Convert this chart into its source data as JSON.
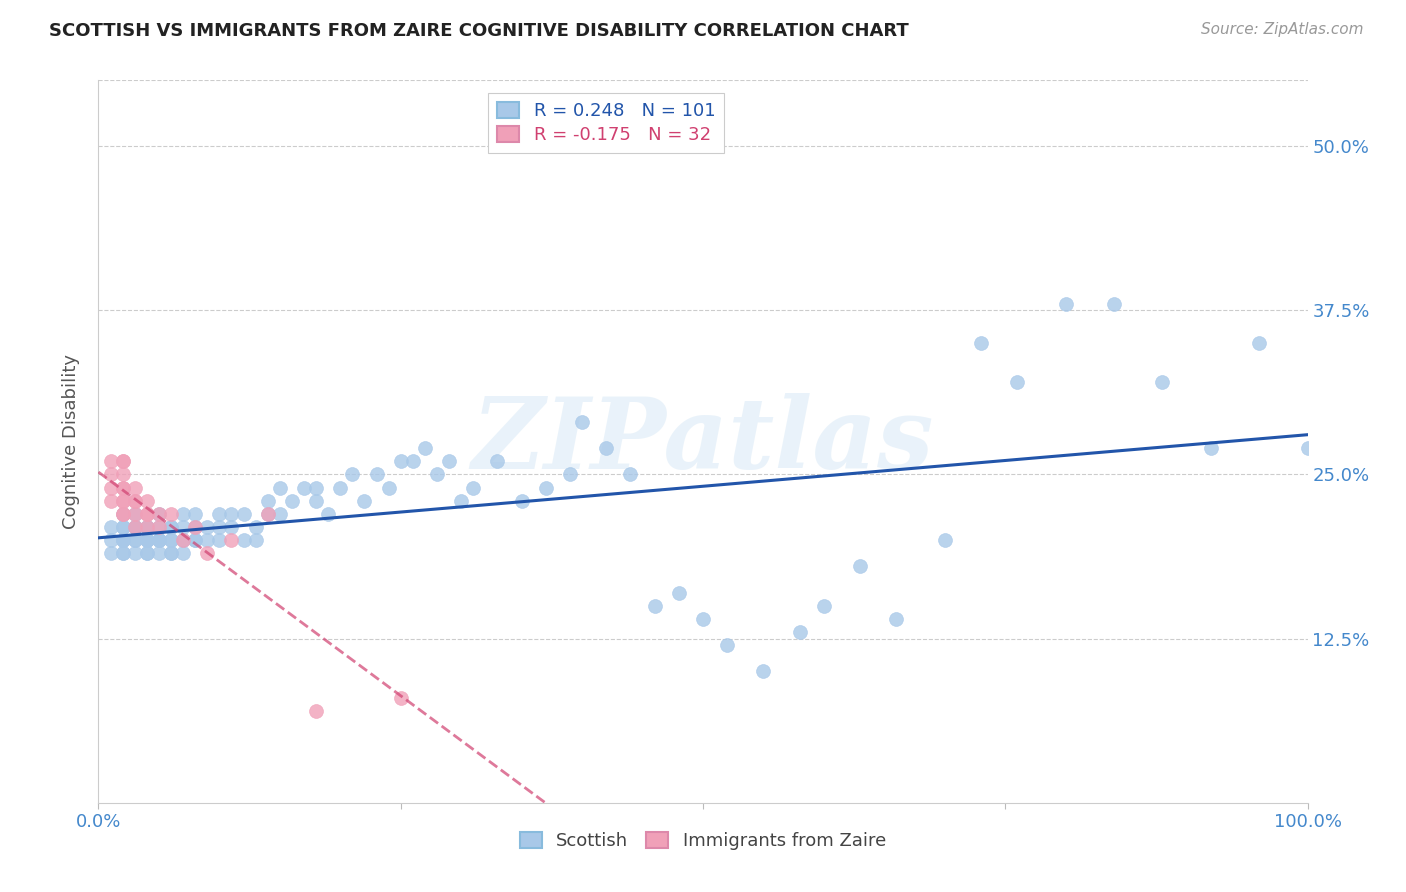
{
  "title": "SCOTTISH VS IMMIGRANTS FROM ZAIRE COGNITIVE DISABILITY CORRELATION CHART",
  "source": "Source: ZipAtlas.com",
  "ylabel": "Cognitive Disability",
  "xlim": [
    0.0,
    1.0
  ],
  "ylim": [
    0.0,
    0.55
  ],
  "scottish_color": "#a8c8e8",
  "zaire_color": "#f0a0b8",
  "scottish_line_color": "#2255aa",
  "zaire_line_color": "#d04070",
  "R_scottish": 0.248,
  "N_scottish": 101,
  "R_zaire": -0.175,
  "N_zaire": 32,
  "legend_labels": [
    "Scottish",
    "Immigrants from Zaire"
  ],
  "watermark": "ZIPatlas",
  "background_color": "#ffffff",
  "grid_color": "#cccccc",
  "tick_color": "#4488cc",
  "scottish_x": [
    0.01,
    0.01,
    0.01,
    0.02,
    0.02,
    0.02,
    0.02,
    0.02,
    0.02,
    0.02,
    0.02,
    0.03,
    0.03,
    0.03,
    0.03,
    0.03,
    0.03,
    0.04,
    0.04,
    0.04,
    0.04,
    0.04,
    0.04,
    0.04,
    0.05,
    0.05,
    0.05,
    0.05,
    0.05,
    0.05,
    0.06,
    0.06,
    0.06,
    0.06,
    0.06,
    0.06,
    0.07,
    0.07,
    0.07,
    0.07,
    0.08,
    0.08,
    0.08,
    0.08,
    0.09,
    0.09,
    0.1,
    0.1,
    0.1,
    0.11,
    0.11,
    0.12,
    0.12,
    0.13,
    0.13,
    0.14,
    0.14,
    0.15,
    0.15,
    0.16,
    0.17,
    0.18,
    0.18,
    0.19,
    0.2,
    0.21,
    0.22,
    0.23,
    0.24,
    0.25,
    0.26,
    0.27,
    0.28,
    0.29,
    0.3,
    0.31,
    0.33,
    0.35,
    0.37,
    0.39,
    0.4,
    0.42,
    0.44,
    0.46,
    0.48,
    0.5,
    0.52,
    0.55,
    0.58,
    0.6,
    0.63,
    0.66,
    0.7,
    0.73,
    0.76,
    0.8,
    0.84,
    0.88,
    0.92,
    0.96,
    1.0
  ],
  "scottish_y": [
    0.2,
    0.21,
    0.19,
    0.2,
    0.21,
    0.19,
    0.2,
    0.21,
    0.22,
    0.19,
    0.2,
    0.2,
    0.21,
    0.19,
    0.22,
    0.2,
    0.21,
    0.19,
    0.2,
    0.21,
    0.2,
    0.19,
    0.21,
    0.2,
    0.2,
    0.21,
    0.19,
    0.2,
    0.22,
    0.2,
    0.21,
    0.19,
    0.2,
    0.21,
    0.2,
    0.19,
    0.2,
    0.22,
    0.21,
    0.19,
    0.21,
    0.2,
    0.22,
    0.2,
    0.21,
    0.2,
    0.22,
    0.21,
    0.2,
    0.22,
    0.21,
    0.22,
    0.2,
    0.21,
    0.2,
    0.22,
    0.23,
    0.24,
    0.22,
    0.23,
    0.24,
    0.23,
    0.24,
    0.22,
    0.24,
    0.25,
    0.23,
    0.25,
    0.24,
    0.26,
    0.26,
    0.27,
    0.25,
    0.26,
    0.23,
    0.24,
    0.26,
    0.23,
    0.24,
    0.25,
    0.29,
    0.27,
    0.25,
    0.15,
    0.16,
    0.14,
    0.12,
    0.1,
    0.13,
    0.15,
    0.18,
    0.14,
    0.2,
    0.35,
    0.32,
    0.38,
    0.38,
    0.32,
    0.27,
    0.35,
    0.27
  ],
  "zaire_x": [
    0.01,
    0.01,
    0.01,
    0.01,
    0.02,
    0.02,
    0.02,
    0.02,
    0.02,
    0.02,
    0.02,
    0.02,
    0.02,
    0.03,
    0.03,
    0.03,
    0.03,
    0.03,
    0.04,
    0.04,
    0.04,
    0.04,
    0.05,
    0.05,
    0.06,
    0.07,
    0.08,
    0.09,
    0.11,
    0.14,
    0.18,
    0.25
  ],
  "zaire_y": [
    0.25,
    0.26,
    0.24,
    0.23,
    0.25,
    0.24,
    0.26,
    0.23,
    0.22,
    0.24,
    0.26,
    0.23,
    0.22,
    0.24,
    0.23,
    0.22,
    0.21,
    0.23,
    0.22,
    0.23,
    0.22,
    0.21,
    0.22,
    0.21,
    0.22,
    0.2,
    0.21,
    0.19,
    0.2,
    0.22,
    0.07,
    0.08
  ]
}
